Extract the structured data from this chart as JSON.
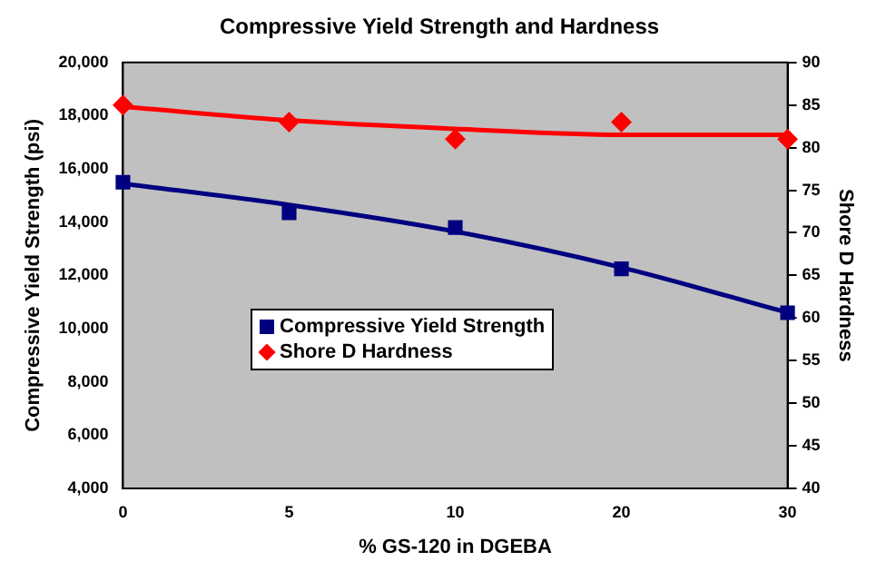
{
  "chart_data": {
    "type": "scatter",
    "title": "Compressive Yield Strength and Hardness",
    "xlabel": "% GS-120 in DGEBA",
    "ylabel": "Compressive Yield Strength (psi)",
    "y2label": "Shore D Hardness",
    "categories": [
      "0",
      "5",
      "10",
      "20",
      "30"
    ],
    "series": [
      {
        "name": "Compressive Yield Strength",
        "marker": "square",
        "color": "#000080",
        "values": [
          15500,
          14350,
          13800,
          12250,
          10600
        ]
      },
      {
        "name": "Shore D Hardness",
        "marker": "diamond",
        "color": "#ff0000",
        "axis": "y2",
        "values": [
          85,
          83,
          81,
          83,
          81
        ]
      },
      {
        "type": "line",
        "color": "#000080",
        "marker": "none",
        "values": [
          15450,
          14650,
          13650,
          12300,
          10600
        ]
      },
      {
        "type": "line",
        "color": "#ff0000",
        "marker": "none",
        "axis": "y2",
        "values": [
          84.8,
          83.2,
          82.2,
          81.5,
          81.5
        ]
      }
    ],
    "ylim": [
      4000,
      20000
    ],
    "yticks": [
      {
        "value": 4000,
        "label": "4,000"
      },
      {
        "value": 6000,
        "label": "6,000"
      },
      {
        "value": 8000,
        "label": "8,000"
      },
      {
        "value": 10000,
        "label": "10,000"
      },
      {
        "value": 12000,
        "label": "12,000"
      },
      {
        "value": 14000,
        "label": "14,000"
      },
      {
        "value": 16000,
        "label": "16,000"
      },
      {
        "value": 18000,
        "label": "18,000"
      },
      {
        "value": 20000,
        "label": "20,000"
      }
    ],
    "y2lim": [
      40,
      90
    ],
    "y2ticks": [
      40,
      45,
      50,
      55,
      60,
      65,
      70,
      75,
      80,
      85,
      90
    ],
    "grid": false,
    "legend": "left"
  }
}
